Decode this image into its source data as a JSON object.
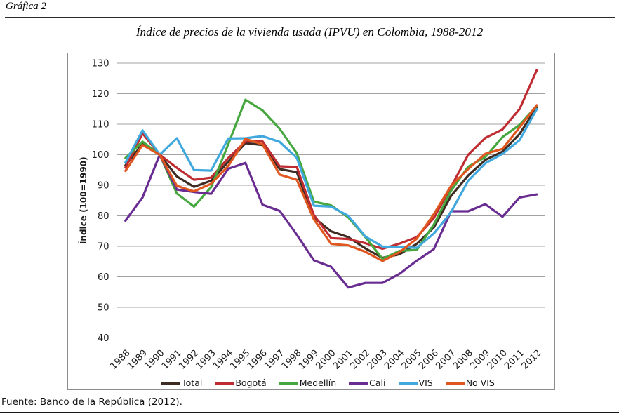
{
  "header": {
    "figure_label": "Gráfica 2"
  },
  "footer": {
    "source_note": "Fuente: Banco de la República (2012)."
  },
  "chart_data": {
    "type": "line",
    "title": "Índice de precios de la vivienda usada (IPVU) en Colombia, 1988-2012",
    "xlabel": "",
    "ylabel": "Índice (100=1990)",
    "ylim": [
      40,
      130
    ],
    "ytick_step": 10,
    "grid": true,
    "legend_position": "bottom",
    "x": [
      1988,
      1989,
      1990,
      1991,
      1992,
      1993,
      1994,
      1995,
      1996,
      1997,
      1998,
      1999,
      2000,
      2001,
      2002,
      2003,
      2004,
      2005,
      2006,
      2007,
      2008,
      2009,
      2010,
      2011,
      2012
    ],
    "series": [
      {
        "name": "Total",
        "color": "#3E2C23",
        "values": [
          96.5,
          103.5,
          100,
          92.9,
          89.5,
          91.5,
          97.7,
          103.8,
          103.2,
          95.3,
          94.3,
          79.4,
          74.9,
          73.0,
          69.3,
          66.2,
          67.4,
          70.8,
          76.2,
          86.5,
          93.2,
          98.3,
          101.0,
          106.8,
          115.6
        ]
      },
      {
        "name": "Bogotá",
        "color": "#BE2B31",
        "values": [
          95.8,
          107.0,
          100,
          95.7,
          91.8,
          92.5,
          98.9,
          104.3,
          104.4,
          96.2,
          96.0,
          80.2,
          72.7,
          72.4,
          71.0,
          69.2,
          70.9,
          73.0,
          79.3,
          89.5,
          100.0,
          105.5,
          108.3,
          115.0,
          127.7
        ]
      },
      {
        "name": "Medellín",
        "color": "#46A73E",
        "values": [
          98.9,
          104.3,
          100,
          87.3,
          83.0,
          89.4,
          103.4,
          118.0,
          114.5,
          108.5,
          100.5,
          84.6,
          83.4,
          79.5,
          73.0,
          65.9,
          68.5,
          68.8,
          77.2,
          88.2,
          96.1,
          99.2,
          105.8,
          109.8,
          116.0
        ]
      },
      {
        "name": "Cali",
        "color": "#692D91",
        "values": [
          78.4,
          86.0,
          100,
          88.6,
          87.8,
          87.2,
          95.4,
          97.3,
          83.6,
          81.6,
          73.8,
          65.4,
          63.3,
          56.5,
          58.0,
          58.0,
          61.0,
          65.3,
          69.1,
          81.5,
          81.5,
          83.8,
          79.7,
          86.0,
          87.0
        ]
      },
      {
        "name": "VIS",
        "color": "#41A8DE",
        "values": [
          97.4,
          108.0,
          100,
          105.4,
          95.0,
          94.8,
          105.3,
          105.4,
          106.1,
          104.2,
          99.0,
          83.3,
          83.0,
          80.0,
          73.2,
          69.9,
          69.7,
          69.5,
          74.2,
          81.2,
          91.5,
          97.2,
          100.3,
          104.8,
          114.9
        ]
      },
      {
        "name": "No VIS",
        "color": "#E0561F",
        "values": [
          94.7,
          103.2,
          100,
          89.8,
          88.0,
          90.5,
          96.3,
          105.2,
          103.4,
          93.5,
          91.8,
          78.8,
          70.8,
          70.3,
          68.2,
          65.2,
          68.1,
          72.5,
          80.6,
          89.8,
          95.3,
          100.3,
          101.9,
          109.0,
          116.2
        ]
      }
    ]
  }
}
